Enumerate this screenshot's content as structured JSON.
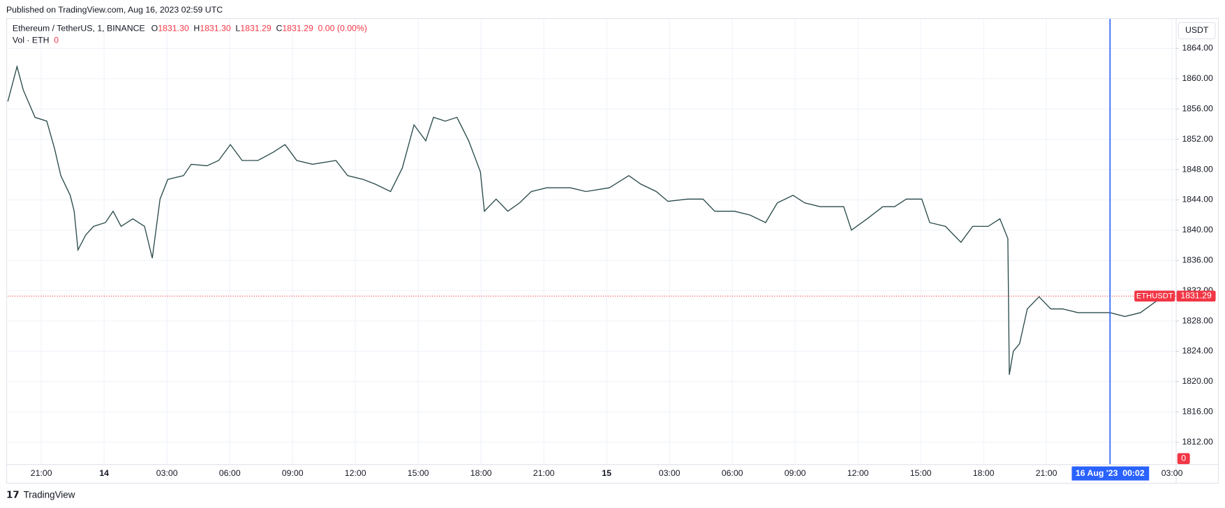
{
  "header": {
    "published": "Published on TradingView.com, Aug 16, 2023 02:59 UTC"
  },
  "legend": {
    "symbol": "Ethereum / TetherUS, 1, BINANCE",
    "ohlc": [
      {
        "key": "O",
        "value": "1831.30"
      },
      {
        "key": "H",
        "value": "1831.30"
      },
      {
        "key": "L",
        "value": "1831.29"
      },
      {
        "key": "C",
        "value": "1831.29"
      }
    ],
    "change": "0.00 (0.00%)",
    "volume_name": "Vol · ETH",
    "volume_value": "0"
  },
  "currency_button": "USDT",
  "footer": "TradingView",
  "chart_data": {
    "type": "line",
    "color": "#2a4a4a",
    "grid": true,
    "x": [
      -4.6,
      -4.16,
      -3.86,
      -3.3,
      -2.74,
      -2.37,
      -2.07,
      -1.62,
      -1.43,
      -1.25,
      -0.87,
      -0.5,
      0.06,
      0.43,
      0.81,
      1.37,
      1.93,
      2.3,
      2.67,
      3.04,
      3.79,
      4.16,
      4.91,
      5.47,
      6.03,
      6.59,
      7.34,
      8.08,
      8.64,
      9.2,
      9.95,
      11.07,
      11.63,
      12.37,
      12.93,
      13.68,
      14.24,
      14.8,
      15.36,
      15.73,
      16.29,
      16.85,
      17.41,
      17.97,
      18.16,
      18.72,
      19.28,
      19.84,
      20.4,
      21.14,
      22.26,
      23.01,
      24.13,
      25.06,
      25.62,
      26.37,
      26.93,
      27.86,
      28.6,
      29.16,
      30.1,
      30.84,
      31.59,
      32.15,
      32.9,
      33.46,
      34.2,
      35.32,
      35.69,
      36.44,
      37.19,
      37.75,
      38.31,
      39.05,
      39.43,
      40.18,
      40.92,
      41.48,
      42.22,
      42.78,
      43.16,
      43.23,
      43.42,
      43.72,
      44.09,
      44.65,
      45.21,
      45.77,
      46.51,
      47.26,
      48.04,
      48.75,
      49.49,
      50.24,
      50.88
    ],
    "series": [
      {
        "name": "ETHUSDT",
        "color": "#2a4a4a",
        "values": [
          1857.0,
          1861.6,
          1858.5,
          1854.9,
          1854.4,
          1850.8,
          1847.2,
          1844.6,
          1842.5,
          1837.4,
          1839.4,
          1840.5,
          1841.0,
          1842.5,
          1840.5,
          1841.5,
          1840.5,
          1836.3,
          1844.1,
          1846.7,
          1847.2,
          1848.7,
          1848.5,
          1849.2,
          1851.3,
          1849.2,
          1849.2,
          1850.3,
          1851.3,
          1849.2,
          1848.7,
          1849.2,
          1847.2,
          1846.7,
          1846.1,
          1845.1,
          1848.2,
          1853.9,
          1851.8,
          1854.9,
          1854.4,
          1854.9,
          1851.8,
          1847.7,
          1842.5,
          1844.1,
          1842.5,
          1843.6,
          1845.1,
          1845.6,
          1845.6,
          1845.1,
          1845.6,
          1847.2,
          1846.1,
          1845.1,
          1843.8,
          1844.1,
          1844.1,
          1842.5,
          1842.5,
          1842.0,
          1841.0,
          1843.6,
          1844.6,
          1843.6,
          1843.1,
          1843.1,
          1840.0,
          1841.5,
          1843.1,
          1843.1,
          1844.1,
          1844.1,
          1841.0,
          1840.5,
          1838.4,
          1840.5,
          1840.5,
          1841.5,
          1838.9,
          1820.9,
          1824.0,
          1825.0,
          1829.6,
          1831.2,
          1829.6,
          1829.6,
          1829.1,
          1829.1,
          1829.1,
          1828.6,
          1829.1,
          1830.6,
          1831.29
        ]
      }
    ],
    "xlim": [
      -4.6,
      51.18
    ],
    "xticks": [
      {
        "value": -3,
        "label": "21:00"
      },
      {
        "value": 0,
        "label": "14"
      },
      {
        "value": 3,
        "label": "03:00"
      },
      {
        "value": 6,
        "label": "06:00"
      },
      {
        "value": 9,
        "label": "09:00"
      },
      {
        "value": 12,
        "label": "12:00"
      },
      {
        "value": 15,
        "label": "15:00"
      },
      {
        "value": 18,
        "label": "18:00"
      },
      {
        "value": 21,
        "label": "21:00"
      },
      {
        "value": 24,
        "label": "15"
      },
      {
        "value": 27,
        "label": "03:00"
      },
      {
        "value": 30,
        "label": "06:00"
      },
      {
        "value": 33,
        "label": "09:00"
      },
      {
        "value": 36,
        "label": "12:00"
      },
      {
        "value": 39,
        "label": "15:00"
      },
      {
        "value": 42,
        "label": "18:00"
      },
      {
        "value": 45,
        "label": "21:00"
      },
      {
        "value": 51,
        "label": "03:00"
      }
    ],
    "ylim": [
      1809.1,
      1867.9
    ],
    "yticks": [
      {
        "value": 1812,
        "label": "1812.00"
      },
      {
        "value": 1816,
        "label": "1816.00"
      },
      {
        "value": 1820,
        "label": "1820.00"
      },
      {
        "value": 1824,
        "label": "1824.00"
      },
      {
        "value": 1828,
        "label": "1828.00"
      },
      {
        "value": 1832,
        "label": "1832.00"
      },
      {
        "value": 1836,
        "label": "1836.00"
      },
      {
        "value": 1840,
        "label": "1840.00"
      },
      {
        "value": 1844,
        "label": "1844.00"
      },
      {
        "value": 1848,
        "label": "1848.00"
      },
      {
        "value": 1852,
        "label": "1852.00"
      },
      {
        "value": 1856,
        "label": "1856.00"
      },
      {
        "value": 1860,
        "label": "1860.00"
      },
      {
        "value": 1864,
        "label": "1864.00"
      }
    ],
    "last_price": {
      "value": 1831.29,
      "label": "1831.29"
    },
    "crosshair": {
      "x": 48.04,
      "label": "16 Aug '23  00:02"
    }
  }
}
